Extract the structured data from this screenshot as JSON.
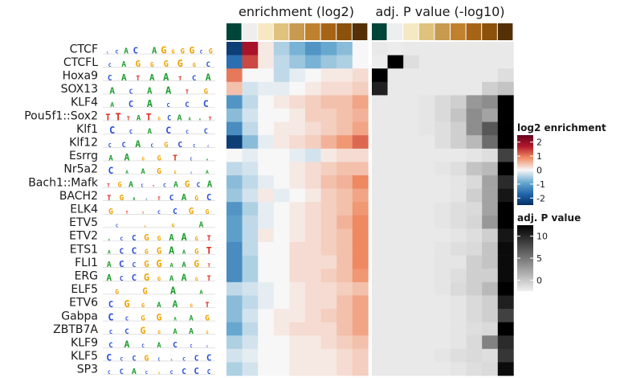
{
  "chart_data": {
    "type": "heatmap",
    "rows": [
      "CTCF",
      "CTCFL",
      "Hoxa9",
      "SOX13",
      "KLF4",
      "Pou5f1::Sox2",
      "Klf1",
      "Klf12",
      "Esrrg",
      "Nr5a2",
      "Bach1::Mafk",
      "BACH2",
      "ELK4",
      "ETV5",
      "ETV2",
      "ETS1",
      "FLI1",
      "ERG",
      "ELF5",
      "ETV6",
      "Gabpa",
      "ZBTB7A",
      "KLF9",
      "KLF5",
      "SP3"
    ],
    "motif_logos": [
      "CCAC AGGGGCG",
      "CAGGGGGC",
      "CATAATCA",
      "ACAATG",
      "ACACCC",
      "TTTATGCAAAT",
      "CCACCC",
      "CCACGCCC",
      "AAGGTCA",
      "CAAGGCA",
      "TGACTCAGCA",
      "TGACTCAGC",
      "GTTCCGG",
      "CGGA",
      "ACCGGAAGT",
      "ACCGGAAGT",
      "ACCGGAAGT",
      "ACCGGAAGT",
      "GGAA",
      "CGGAAGT",
      "CCGGAAG",
      "CCGGAAG",
      "CACACCC",
      "CCCGCCCCC",
      "CCACGCCCC"
    ],
    "column_bin_colors": [
      "#00453a",
      "#eeeeee",
      "#f6e8c3",
      "#dfc27d",
      "#c79a50",
      "#bf812d",
      "#a66516",
      "#8c510a",
      "#543005"
    ],
    "panels": [
      {
        "title": "enrichment (log2)",
        "legend_title": "log2 enrichment",
        "legend_ticks": [
          "2",
          "1",
          "0",
          "-1",
          "-2"
        ],
        "range": [
          -2.2,
          2.2
        ],
        "values": [
          [
            -2.0,
            1.6,
            0.1,
            -0.4,
            -0.7,
            -1.0,
            -0.8,
            -0.6,
            0.0
          ],
          [
            -1.4,
            1.2,
            0.1,
            -0.3,
            -0.5,
            -0.7,
            -0.5,
            -0.4,
            0.0
          ],
          [
            0.9,
            0.0,
            0.0,
            -0.3,
            -0.1,
            0.0,
            0.1,
            0.1,
            0.2
          ],
          [
            0.4,
            -0.2,
            -0.1,
            -0.1,
            0.0,
            0.1,
            0.2,
            0.2,
            0.3
          ],
          [
            -1.0,
            -0.3,
            0.0,
            0.1,
            0.2,
            0.3,
            0.4,
            0.4,
            0.6
          ],
          [
            -0.6,
            -0.2,
            0.0,
            0.0,
            0.1,
            0.3,
            0.3,
            0.4,
            0.5
          ],
          [
            -1.1,
            -0.3,
            0.0,
            0.1,
            0.1,
            0.2,
            0.3,
            0.4,
            0.6
          ],
          [
            -2.0,
            -0.6,
            -0.1,
            0.1,
            0.2,
            0.3,
            0.5,
            0.7,
            1.0
          ],
          [
            0.0,
            -0.1,
            0.0,
            0.0,
            -0.1,
            -0.2,
            0.1,
            0.2,
            0.2
          ],
          [
            -0.3,
            -0.2,
            0.0,
            0.0,
            0.1,
            0.2,
            0.3,
            0.4,
            0.4
          ],
          [
            -0.6,
            -0.3,
            -0.1,
            0.0,
            0.1,
            0.2,
            0.4,
            0.5,
            0.8
          ],
          [
            -0.5,
            -0.2,
            0.1,
            -0.1,
            0.0,
            0.1,
            0.3,
            0.4,
            0.6
          ],
          [
            -1.0,
            -0.4,
            -0.1,
            0.0,
            0.1,
            0.2,
            0.3,
            0.4,
            0.7
          ],
          [
            -0.9,
            -0.3,
            -0.1,
            0.0,
            0.1,
            0.2,
            0.3,
            0.5,
            0.8
          ],
          [
            -0.9,
            -0.3,
            0.1,
            0.0,
            0.1,
            0.2,
            0.3,
            0.4,
            0.8
          ],
          [
            -1.1,
            -0.3,
            0.0,
            0.0,
            0.2,
            0.2,
            0.3,
            0.4,
            0.8
          ],
          [
            -1.1,
            -0.4,
            0.0,
            0.0,
            0.2,
            0.2,
            0.2,
            0.4,
            0.8
          ],
          [
            -1.1,
            -0.4,
            0.0,
            0.0,
            0.2,
            0.2,
            0.3,
            0.4,
            0.7
          ],
          [
            -0.3,
            -0.2,
            -0.1,
            0.0,
            0.1,
            0.2,
            0.2,
            0.3,
            0.4
          ],
          [
            -0.6,
            -0.3,
            -0.1,
            0.0,
            0.1,
            0.2,
            0.2,
            0.4,
            0.6
          ],
          [
            -0.6,
            -0.2,
            0.0,
            0.1,
            0.1,
            0.2,
            0.3,
            0.4,
            0.6
          ],
          [
            -0.8,
            -0.3,
            0.0,
            0.1,
            0.2,
            0.2,
            0.2,
            0.4,
            0.6
          ],
          [
            -0.4,
            -0.2,
            0.0,
            0.0,
            0.1,
            0.1,
            0.2,
            0.3,
            0.4
          ],
          [
            -0.2,
            -0.1,
            0.0,
            0.0,
            0.1,
            0.1,
            0.1,
            0.2,
            0.3
          ],
          [
            -0.4,
            -0.2,
            0.0,
            0.0,
            0.1,
            0.1,
            0.1,
            0.2,
            0.3
          ]
        ]
      },
      {
        "title": "adj. P value (-log10)",
        "legend_title": "adj. P value",
        "legend_ticks": [
          "10",
          "5",
          "0"
        ],
        "range": [
          0,
          11
        ],
        "values": [
          [
            0.3,
            0.2,
            0.3,
            0.3,
            0.3,
            0.3,
            0.3,
            0.3,
            0.3
          ],
          [
            0.2,
            11.0,
            0.8,
            0.3,
            0.3,
            0.3,
            0.3,
            0.3,
            0.3
          ],
          [
            11.0,
            0.3,
            0.3,
            0.3,
            0.3,
            0.3,
            0.3,
            0.3,
            0.8
          ],
          [
            9.5,
            0.3,
            0.3,
            0.3,
            0.3,
            0.3,
            0.3,
            1.5,
            2.0
          ],
          [
            0.3,
            0.3,
            0.3,
            0.5,
            1.0,
            1.5,
            4.0,
            4.5,
            11.0
          ],
          [
            0.3,
            0.3,
            0.3,
            0.5,
            1.0,
            2.0,
            4.5,
            3.5,
            11.0
          ],
          [
            0.3,
            0.3,
            0.3,
            0.5,
            0.8,
            1.5,
            4.5,
            7.0,
            11.0
          ],
          [
            0.3,
            0.3,
            0.3,
            0.3,
            0.8,
            1.5,
            2.5,
            6.0,
            11.0
          ],
          [
            0.3,
            0.3,
            0.3,
            0.3,
            0.3,
            0.3,
            0.5,
            0.8,
            8.0
          ],
          [
            0.3,
            0.3,
            0.3,
            0.3,
            0.5,
            0.8,
            2.0,
            2.5,
            11.0
          ],
          [
            0.3,
            0.3,
            0.3,
            0.3,
            0.3,
            0.5,
            1.0,
            3.5,
            9.0
          ],
          [
            0.3,
            0.3,
            0.3,
            0.3,
            0.3,
            0.5,
            1.5,
            3.5,
            10.0
          ],
          [
            0.3,
            0.3,
            0.3,
            0.3,
            0.5,
            0.8,
            1.0,
            3.5,
            11.0
          ],
          [
            0.3,
            0.3,
            0.3,
            0.3,
            0.5,
            0.8,
            1.2,
            4.0,
            11.0
          ],
          [
            0.3,
            0.3,
            0.3,
            0.3,
            0.3,
            0.5,
            0.8,
            1.5,
            10.0
          ],
          [
            0.3,
            0.3,
            0.3,
            0.3,
            0.5,
            0.8,
            1.0,
            2.0,
            10.5
          ],
          [
            0.3,
            0.3,
            0.3,
            0.3,
            0.5,
            0.5,
            1.5,
            2.0,
            10.5
          ],
          [
            0.3,
            0.3,
            0.3,
            0.3,
            0.5,
            0.8,
            1.5,
            1.5,
            10.5
          ],
          [
            0.3,
            0.3,
            0.3,
            0.3,
            0.5,
            1.0,
            1.5,
            2.5,
            11.0
          ],
          [
            0.3,
            0.3,
            0.3,
            0.3,
            0.3,
            0.5,
            1.0,
            1.5,
            9.5
          ],
          [
            0.3,
            0.3,
            0.3,
            0.3,
            0.3,
            0.5,
            1.0,
            1.5,
            8.0
          ],
          [
            0.3,
            0.3,
            0.3,
            0.3,
            0.3,
            0.5,
            0.8,
            1.0,
            11.0
          ],
          [
            0.3,
            0.3,
            0.3,
            0.3,
            0.3,
            0.5,
            1.0,
            5.0,
            9.0
          ],
          [
            0.3,
            0.3,
            0.3,
            0.3,
            0.5,
            0.8,
            1.0,
            0.8,
            8.5
          ],
          [
            0.3,
            0.3,
            0.3,
            0.3,
            0.3,
            0.5,
            0.8,
            1.0,
            10.5
          ]
        ]
      }
    ]
  }
}
